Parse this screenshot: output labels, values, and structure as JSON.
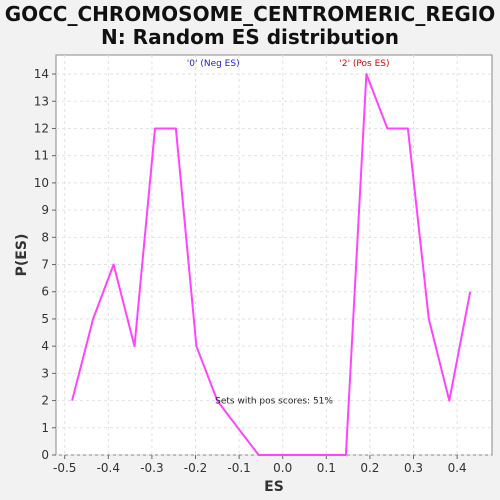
{
  "chart_data": {
    "type": "line",
    "title_line1": "GOCC_CHROMOSOME_CENTROMERIC_REGIO",
    "title_line2": "N: Random ES distribution",
    "xlabel": "ES",
    "ylabel": "P(ES)",
    "xlim": [
      -0.52,
      0.48
    ],
    "ylim": [
      0,
      14.7
    ],
    "xticks": [
      "-0.5",
      "-0.4",
      "-0.3",
      "-0.2",
      "-0.1",
      "0.0",
      "0.1",
      "0.2",
      "0.3",
      "0.4"
    ],
    "xtick_values": [
      -0.5,
      -0.4,
      -0.3,
      -0.2,
      -0.1,
      0.0,
      0.1,
      0.2,
      0.3,
      0.4
    ],
    "yticks": [
      "0",
      "1",
      "2",
      "3",
      "4",
      "5",
      "6",
      "7",
      "8",
      "9",
      "10",
      "11",
      "12",
      "13",
      "14"
    ],
    "ytick_values": [
      0,
      1,
      2,
      3,
      4,
      5,
      6,
      7,
      8,
      9,
      10,
      11,
      12,
      13,
      14
    ],
    "grid": true,
    "series": [
      {
        "color": "#ff44ff",
        "x": [
          -0.483,
          -0.435,
          -0.388,
          -0.34,
          -0.293,
          -0.245,
          -0.198,
          -0.15,
          -0.103,
          -0.055,
          -0.008,
          0.04,
          0.087,
          0.135,
          0.145,
          0.192,
          0.24,
          0.287,
          0.335,
          0.382,
          0.43
        ],
        "y": [
          2,
          5,
          7,
          4,
          12,
          12,
          4,
          2,
          1,
          0,
          0,
          0,
          0,
          0,
          0,
          14,
          12,
          12,
          5,
          2,
          6
        ]
      }
    ],
    "annotations": [
      {
        "text": "'0' (Neg ES)",
        "x": -0.22,
        "y": 14.3,
        "color": "#2222cc"
      },
      {
        "text": "'2' (Pos ES)",
        "x": 0.13,
        "y": 14.3,
        "color": "#dd0000"
      },
      {
        "text": "Sets with pos scores: 51%",
        "x": -0.155,
        "y": 1.9,
        "color": "#222222"
      }
    ]
  }
}
